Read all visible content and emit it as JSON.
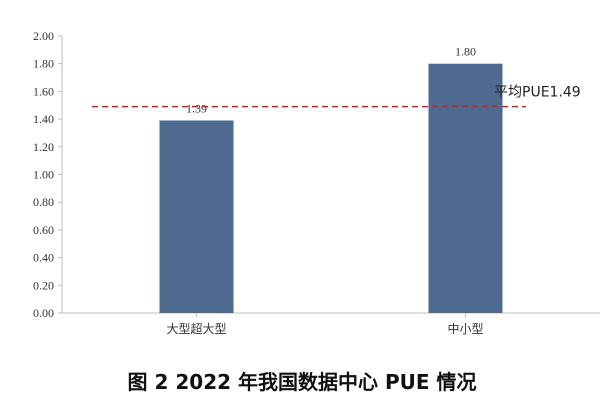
{
  "caption": "图 2 2022 年我国数据中心 PUE 情况",
  "chart_data": {
    "type": "bar",
    "categories": [
      "大型超大型",
      "中小型"
    ],
    "values": [
      1.39,
      1.8
    ],
    "value_labels": [
      "1.39",
      "1.80"
    ],
    "y_ticks": [
      "0.00",
      "0.20",
      "0.40",
      "0.60",
      "0.80",
      "1.00",
      "1.20",
      "1.40",
      "1.60",
      "1.80",
      "2.00"
    ],
    "ylim": [
      0,
      2.0
    ],
    "grid": false,
    "reference_line": {
      "value": 1.49,
      "label": "平均PUE1.49",
      "style": "dashed",
      "color": "#cc2222"
    },
    "bar_color": "#4e6a8e",
    "title": "图 2 2022 年我国数据中心 PUE 情况"
  }
}
